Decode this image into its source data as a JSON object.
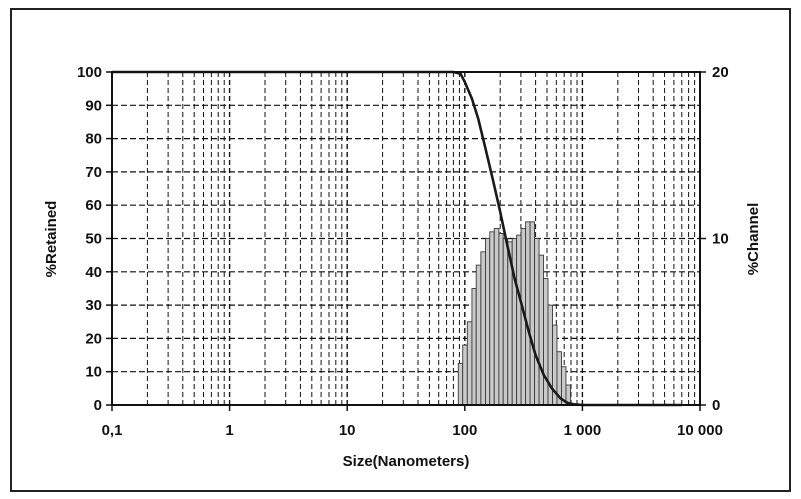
{
  "chart_data": {
    "type": "bar",
    "xlabel": "Size(Nanometers)",
    "ylabel_left": "%Retained",
    "ylabel_right": "%Channel",
    "x_scale": "log",
    "xlim": [
      0.1,
      10000
    ],
    "x_ticks": [
      {
        "value": 0.1,
        "label": "0,1"
      },
      {
        "value": 1,
        "label": "1"
      },
      {
        "value": 10,
        "label": "10"
      },
      {
        "value": 100,
        "label": "100"
      },
      {
        "value": 1000,
        "label": "1 000"
      },
      {
        "value": 10000,
        "label": "10 000"
      }
    ],
    "ylim_left": [
      0,
      100
    ],
    "y_ticks_left": [
      "0",
      "10",
      "20",
      "30",
      "40",
      "50",
      "60",
      "70",
      "80",
      "90",
      "100"
    ],
    "ylim_right": [
      0,
      20
    ],
    "y_ticks_right": [
      "0",
      "10",
      "20"
    ],
    "grid": true,
    "bars": [
      {
        "x0": 88,
        "x1": 96,
        "value": 2.5
      },
      {
        "x0": 96,
        "x1": 105,
        "value": 3.6
      },
      {
        "x0": 105,
        "x1": 115,
        "value": 5
      },
      {
        "x0": 115,
        "x1": 125,
        "value": 7
      },
      {
        "x0": 125,
        "x1": 137,
        "value": 8.4
      },
      {
        "x0": 137,
        "x1": 150,
        "value": 9.2
      },
      {
        "x0": 150,
        "x1": 163,
        "value": 10
      },
      {
        "x0": 163,
        "x1": 178,
        "value": 10.4
      },
      {
        "x0": 178,
        "x1": 195,
        "value": 10.6
      },
      {
        "x0": 195,
        "x1": 212,
        "value": 10.3
      },
      {
        "x0": 212,
        "x1": 232,
        "value": 10
      },
      {
        "x0": 232,
        "x1": 253,
        "value": 9.8
      },
      {
        "x0": 253,
        "x1": 276,
        "value": 10
      },
      {
        "x0": 276,
        "x1": 301,
        "value": 10.2
      },
      {
        "x0": 301,
        "x1": 329,
        "value": 10.6
      },
      {
        "x0": 329,
        "x1": 359,
        "value": 11
      },
      {
        "x0": 359,
        "x1": 392,
        "value": 11
      },
      {
        "x0": 392,
        "x1": 428,
        "value": 10
      },
      {
        "x0": 428,
        "x1": 467,
        "value": 9
      },
      {
        "x0": 467,
        "x1": 510,
        "value": 7.6
      },
      {
        "x0": 510,
        "x1": 557,
        "value": 6
      },
      {
        "x0": 557,
        "x1": 608,
        "value": 4.8
      },
      {
        "x0": 608,
        "x1": 664,
        "value": 3.2
      },
      {
        "x0": 664,
        "x1": 725,
        "value": 2.3
      },
      {
        "x0": 725,
        "x1": 792,
        "value": 1.2
      }
    ],
    "cumulative": [
      {
        "x": 0.1,
        "y": 100
      },
      {
        "x": 80,
        "y": 100
      },
      {
        "x": 92,
        "y": 99.5
      },
      {
        "x": 100,
        "y": 97
      },
      {
        "x": 115,
        "y": 92
      },
      {
        "x": 130,
        "y": 86
      },
      {
        "x": 150,
        "y": 77
      },
      {
        "x": 175,
        "y": 67
      },
      {
        "x": 200,
        "y": 58
      },
      {
        "x": 230,
        "y": 48
      },
      {
        "x": 265,
        "y": 38
      },
      {
        "x": 300,
        "y": 31
      },
      {
        "x": 350,
        "y": 22
      },
      {
        "x": 400,
        "y": 15
      },
      {
        "x": 470,
        "y": 9
      },
      {
        "x": 550,
        "y": 5
      },
      {
        "x": 650,
        "y": 2
      },
      {
        "x": 750,
        "y": 0.6
      },
      {
        "x": 850,
        "y": 0.2
      },
      {
        "x": 1000,
        "y": 0
      },
      {
        "x": 7000,
        "y": 0
      }
    ],
    "colors": {
      "bar_fill": "#c9c9c9",
      "bar_stroke": "#3a3a3a",
      "line": "#1a1a1a",
      "grid": "#111111"
    }
  }
}
